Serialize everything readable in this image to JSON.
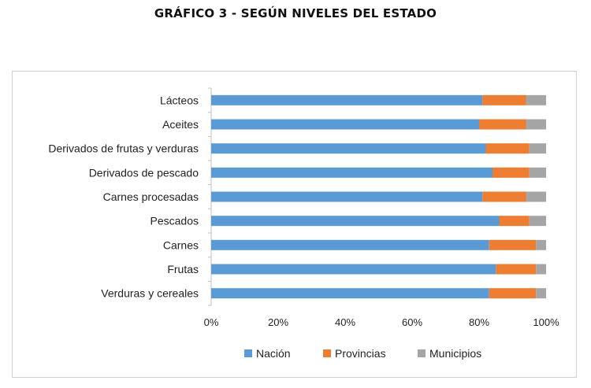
{
  "chart_data": {
    "type": "bar",
    "orientation": "horizontal",
    "stacked": true,
    "title": "GRÁFICO 3 - SEGÚN NIVELES DEL ESTADO",
    "categories": [
      "Lácteos",
      "Aceites",
      "Derivados de frutas y verduras",
      "Derivados de pescado",
      "Carnes procesadas",
      "Pescados",
      "Carnes",
      "Frutas",
      "Verduras y cereales"
    ],
    "series": [
      {
        "name": "Nación",
        "color": "#5b9bd5",
        "values": [
          81,
          80,
          82,
          84,
          81,
          86,
          83,
          85,
          83
        ]
      },
      {
        "name": "Provincias",
        "color": "#ed7d31",
        "values": [
          13,
          14,
          13,
          11,
          13,
          9,
          14,
          12,
          14
        ]
      },
      {
        "name": "Municipios",
        "color": "#a5a5a5",
        "values": [
          6,
          6,
          5,
          5,
          6,
          5,
          3,
          3,
          3
        ]
      }
    ],
    "xlim": [
      0,
      100
    ],
    "xticks": [
      "0%",
      "20%",
      "40%",
      "60%",
      "80%",
      "100%"
    ],
    "xlabel": "",
    "ylabel": "",
    "legend": "bottom"
  }
}
